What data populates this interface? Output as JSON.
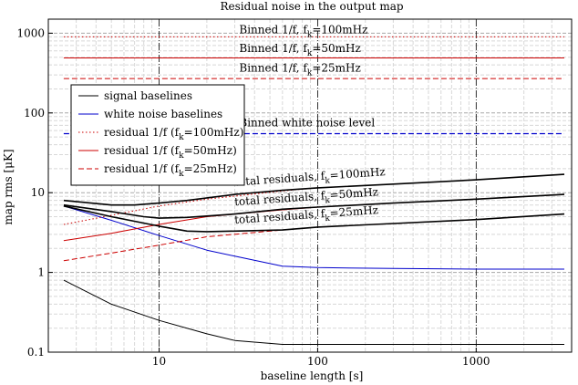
{
  "chart_data": {
    "type": "line",
    "title": "Residual noise in the output map",
    "xlabel": "baseline length [s]",
    "ylabel": "map rms [μK]",
    "xscale": "log",
    "yscale": "log",
    "xlim": [
      2,
      4000
    ],
    "ylim": [
      0.1,
      1500
    ],
    "grid": true,
    "xticks": [
      {
        "v": 10,
        "label": "10"
      },
      {
        "v": 100,
        "label": "100"
      },
      {
        "v": 1000,
        "label": "1000"
      }
    ],
    "yticks": [
      {
        "v": 0.1,
        "label": "0.1"
      },
      {
        "v": 1,
        "label": "1"
      },
      {
        "v": 10,
        "label": "10"
      },
      {
        "v": 100,
        "label": "100"
      },
      {
        "v": 1000,
        "label": "1000"
      }
    ],
    "legend_position": "upper-left",
    "legend": [
      {
        "label": "signal baselines",
        "color": "#000000",
        "dash": "solid"
      },
      {
        "label": "white noise baselines",
        "color": "#0000cc",
        "dash": "solid"
      },
      {
        "label": "residual 1/f (fk=100mHz)",
        "color": "#cc0000",
        "dash": "dotted"
      },
      {
        "label": "residual 1/f (fk=50mHz)",
        "color": "#cc0000",
        "dash": "solid"
      },
      {
        "label": "residual 1/f (fk=25mHz)",
        "color": "#cc0000",
        "dash": "dashed"
      }
    ],
    "series": [
      {
        "name": "signal baselines",
        "color": "#000000",
        "dash": "solid",
        "width": 1,
        "x": [
          2.5,
          5,
          10,
          20,
          30,
          60,
          100,
          300,
          1000,
          3600
        ],
        "y": [
          0.8,
          0.4,
          0.25,
          0.17,
          0.14,
          0.125,
          0.125,
          0.125,
          0.125,
          0.125
        ]
      },
      {
        "name": "white noise baselines",
        "color": "#0000cc",
        "dash": "solid",
        "width": 1,
        "x": [
          2.5,
          5,
          10,
          20,
          30,
          60,
          100,
          300,
          1000,
          3600
        ],
        "y": [
          6.8,
          4.5,
          2.9,
          1.9,
          1.6,
          1.2,
          1.15,
          1.12,
          1.1,
          1.1
        ]
      },
      {
        "name": "residual 1/f (fk=100mHz)",
        "color": "#cc0000",
        "dash": "dotted",
        "width": 1,
        "x": [
          2.5,
          5,
          10,
          20,
          60,
          100,
          300,
          1000,
          3600
        ],
        "y": [
          4.0,
          5.2,
          6.8,
          8.3,
          10.5,
          11.5,
          12.8,
          14.5,
          17
        ]
      },
      {
        "name": "residual 1/f (fk=50mHz)",
        "color": "#cc0000",
        "dash": "solid",
        "width": 1,
        "x": [
          2.5,
          5,
          10,
          20,
          60,
          100,
          300,
          1000,
          3600
        ],
        "y": [
          2.5,
          3.1,
          4.0,
          5.0,
          6.1,
          6.6,
          7.4,
          8.3,
          9.5
        ]
      },
      {
        "name": "residual 1/f (fk=25mHz)",
        "color": "#cc0000",
        "dash": "dashed",
        "width": 1,
        "x": [
          2.5,
          5,
          10,
          20,
          60,
          100,
          300,
          1000,
          3600
        ],
        "y": [
          1.4,
          1.75,
          2.2,
          2.8,
          3.4,
          3.7,
          4.1,
          4.6,
          5.4
        ]
      },
      {
        "name": "total residuals, fk=100mHz",
        "color": "#000000",
        "dash": "solid",
        "width": 1.6,
        "x": [
          2.5,
          5,
          7,
          10,
          15,
          30,
          60,
          100,
          300,
          1000,
          3600
        ],
        "y": [
          8.0,
          7.0,
          7.0,
          7.4,
          8.0,
          9.5,
          10.7,
          11.5,
          12.8,
          14.5,
          17
        ]
      },
      {
        "name": "total residuals, fk=50mHz",
        "color": "#000000",
        "dash": "solid",
        "width": 1.6,
        "x": [
          2.5,
          5,
          8,
          10,
          15,
          30,
          60,
          100,
          300,
          1000,
          3600
        ],
        "y": [
          7.0,
          5.8,
          5.0,
          4.8,
          4.9,
          5.4,
          6.2,
          6.6,
          7.4,
          8.3,
          9.5
        ]
      },
      {
        "name": "total residuals, fk=25mHz",
        "color": "#000000",
        "dash": "solid",
        "width": 1.6,
        "x": [
          2.5,
          5,
          10,
          15,
          20,
          30,
          60,
          100,
          300,
          1000,
          3600
        ],
        "y": [
          6.8,
          5.0,
          3.8,
          3.3,
          3.25,
          3.3,
          3.4,
          3.7,
          4.1,
          4.6,
          5.4
        ]
      },
      {
        "name": "Binned 1/f, fk=100mHz",
        "color": "#cc0000",
        "dash": "dotted",
        "width": 1,
        "x": [
          2.5,
          3600
        ],
        "y": [
          900,
          900
        ]
      },
      {
        "name": "Binned 1/f, fk=50mHz",
        "color": "#cc0000",
        "dash": "solid",
        "width": 1,
        "x": [
          2.5,
          3600
        ],
        "y": [
          490,
          490
        ]
      },
      {
        "name": "Binned 1/f, fk=25mHz",
        "color": "#cc0000",
        "dash": "dashed",
        "width": 1,
        "x": [
          2.5,
          3600
        ],
        "y": [
          270,
          270
        ]
      },
      {
        "name": "Binned white noise level",
        "color": "#0000cc",
        "dash": "dashed",
        "width": 1.2,
        "x": [
          2.5,
          3600
        ],
        "y": [
          55,
          55
        ]
      }
    ],
    "annotations": [
      {
        "id": "ann-binned-100",
        "text": "Binned 1/f, f",
        "sub": "k",
        "tail": "=100mHz",
        "x": 32,
        "y": 1000,
        "rotate": 0
      },
      {
        "id": "ann-binned-50",
        "text": "Binned 1/f, f",
        "sub": "k",
        "tail": "=50mHz",
        "x": 32,
        "y": 580,
        "rotate": 0
      },
      {
        "id": "ann-binned-25",
        "text": "Binned 1/f, f",
        "sub": "k",
        "tail": "=25mHz",
        "x": 32,
        "y": 330,
        "rotate": 0
      },
      {
        "id": "ann-white-level",
        "text": "Binned white noise level",
        "sub": "",
        "tail": "",
        "x": 32,
        "y": 68,
        "rotate": 0
      },
      {
        "id": "ann-total-100",
        "text": "total residuals, f",
        "sub": "k",
        "tail": "=100mHz",
        "x": 30,
        "y": 12.2,
        "rotate": -4
      },
      {
        "id": "ann-total-50",
        "text": "total residuals, f",
        "sub": "k",
        "tail": "=50mHz",
        "x": 30,
        "y": 6.9,
        "rotate": -4
      },
      {
        "id": "ann-total-25",
        "text": "total residuals, f",
        "sub": "k",
        "tail": "=25mHz",
        "x": 30,
        "y": 4.1,
        "rotate": -4
      }
    ],
    "legend_entries": [
      {
        "prefix": "signal baselines",
        "sub": "",
        "tail": ""
      },
      {
        "prefix": "white noise baselines",
        "sub": "",
        "tail": ""
      },
      {
        "prefix": "residual 1/f (f",
        "sub": "k",
        "tail": "=100mHz)"
      },
      {
        "prefix": "residual 1/f (f",
        "sub": "k",
        "tail": "=50mHz)"
      },
      {
        "prefix": "residual 1/f (f",
        "sub": "k",
        "tail": "=25mHz)"
      }
    ]
  }
}
